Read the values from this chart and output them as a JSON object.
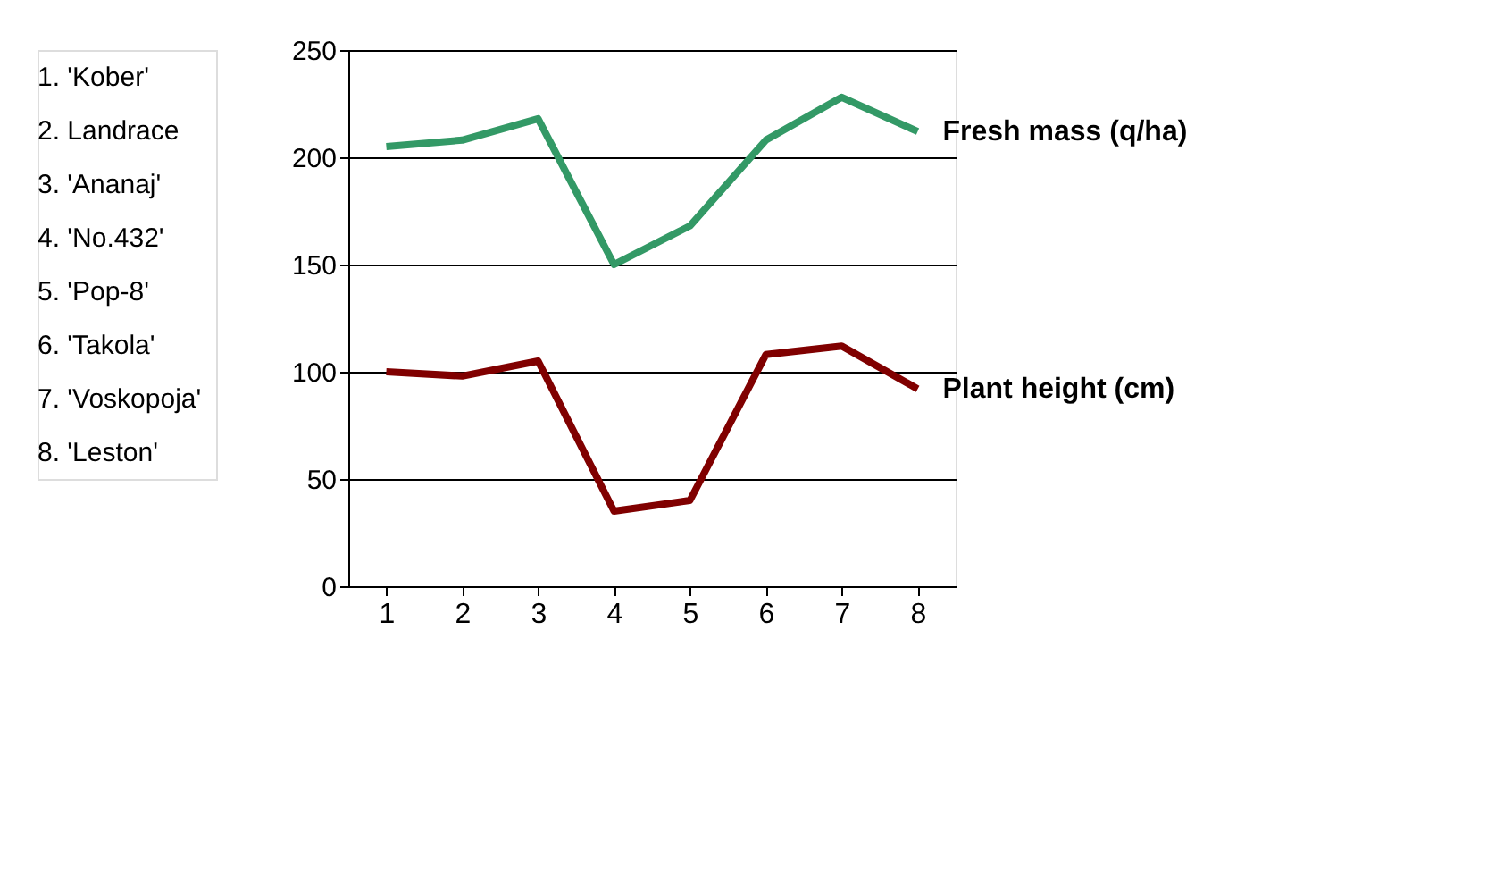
{
  "chart_data": {
    "type": "line",
    "categories": [
      "1",
      "2",
      "3",
      "4",
      "5",
      "6",
      "7",
      "8"
    ],
    "series": [
      {
        "name": "Fresh mass (q/ha)",
        "color": "#339966",
        "values": [
          205,
          208,
          218,
          150,
          168,
          208,
          228,
          212
        ]
      },
      {
        "name": "Plant height (cm)",
        "color": "#800000",
        "values": [
          100,
          98,
          105,
          35,
          40,
          108,
          112,
          92
        ]
      }
    ],
    "ylim": [
      0,
      250
    ],
    "yticks": [
      0,
      50,
      100,
      150,
      200,
      250
    ],
    "grid": "y",
    "marker": "none",
    "line_style": "solid",
    "annotations": [
      "1. 'Kober'",
      "2. Landrace",
      "3. 'Ananaj'",
      "4. 'No.432'",
      "5. 'Pop-8'",
      "6. 'Takola'",
      "7. 'Voskopoja'",
      "8. 'Leston'"
    ]
  }
}
